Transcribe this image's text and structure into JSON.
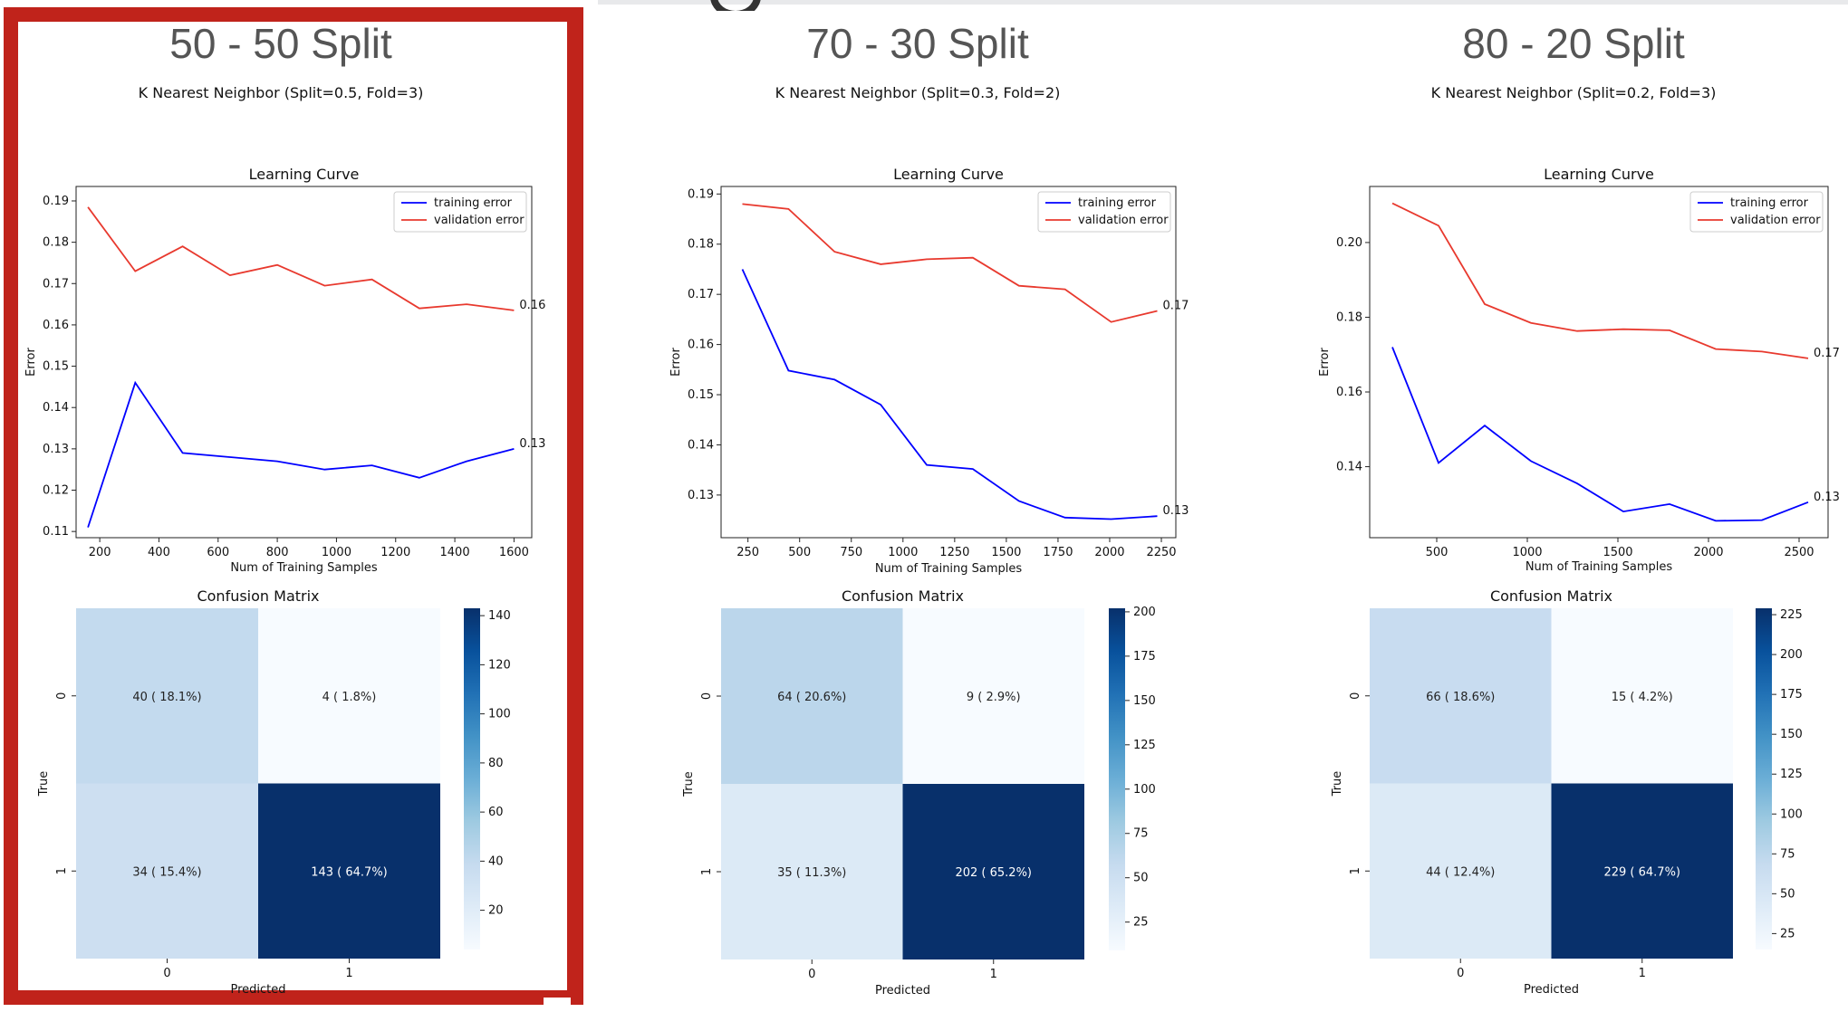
{
  "panels": [
    {
      "title": "50 - 50 Split",
      "subtitle": "K Nearest Neighbor (Split=0.5, Fold=3)",
      "learning_curve": {
        "title": "Learning Curve",
        "xlabel": "Num of Training Samples",
        "ylabel": "Error",
        "x_ticks": [
          200,
          400,
          600,
          800,
          1000,
          1200,
          1400,
          1600
        ],
        "y_ticks": [
          "0.11",
          "0.12",
          "0.13",
          "0.14",
          "0.15",
          "0.16",
          "0.17",
          "0.18",
          "0.19"
        ],
        "xlim": [
          120,
          1660
        ],
        "ylim": [
          0.1085,
          0.1935
        ],
        "series": [
          {
            "name": "training error",
            "color": "#0000ff",
            "x": [
              160,
              320,
              480,
              640,
              800,
              960,
              1120,
              1280,
              1440,
              1600
            ],
            "y": [
              0.111,
              0.146,
              0.129,
              0.128,
              0.127,
              0.125,
              0.126,
              0.123,
              0.127,
              0.13
            ],
            "end_label": "0.13"
          },
          {
            "name": "validation error",
            "color": "#e8392e",
            "x": [
              160,
              320,
              480,
              640,
              800,
              960,
              1120,
              1280,
              1440,
              1600
            ],
            "y": [
              0.1885,
              0.173,
              0.179,
              0.172,
              0.1745,
              0.1695,
              0.171,
              0.164,
              0.165,
              0.1635
            ],
            "end_label": "0.16"
          }
        ]
      },
      "confusion_matrix": {
        "title": "Confusion Matrix",
        "xlabel": "Predicted",
        "ylabel": "True",
        "row_labels": [
          "0",
          "1"
        ],
        "col_labels": [
          "0",
          "1"
        ],
        "values": [
          [
            40,
            4
          ],
          [
            34,
            143
          ]
        ],
        "cell_labels": [
          [
            "40 ( 18.1%)",
            "4 ( 1.8%)"
          ],
          [
            "34 ( 15.4%)",
            "143 ( 64.7%)"
          ]
        ],
        "colorbar_ticks": [
          20,
          40,
          60,
          80,
          100,
          120,
          140
        ]
      }
    },
    {
      "title": "70 - 30 Split",
      "subtitle": "K Nearest Neighbor (Split=0.3, Fold=2)",
      "learning_curve": {
        "title": "Learning Curve",
        "xlabel": "Num of Training Samples",
        "ylabel": "Error",
        "x_ticks": [
          250,
          500,
          750,
          1000,
          1250,
          1500,
          1750,
          2000,
          2250
        ],
        "y_ticks": [
          "0.13",
          "0.14",
          "0.15",
          "0.16",
          "0.17",
          "0.18",
          "0.19"
        ],
        "xlim": [
          120,
          2320
        ],
        "ylim": [
          0.1215,
          0.1915
        ],
        "series": [
          {
            "name": "training error",
            "color": "#0000ff",
            "x": [
              223,
              446,
              669,
              892,
              1115,
              1338,
              1561,
              1784,
              2007,
              2230
            ],
            "y": [
              0.175,
              0.1548,
              0.153,
              0.148,
              0.136,
              0.1352,
              0.1288,
              0.1255,
              0.1252,
              0.1258
            ],
            "end_label": "0.13"
          },
          {
            "name": "validation error",
            "color": "#e8392e",
            "x": [
              223,
              446,
              669,
              892,
              1115,
              1338,
              1561,
              1784,
              2007,
              2230
            ],
            "y": [
              0.188,
              0.187,
              0.1785,
              0.176,
              0.177,
              0.1773,
              0.1717,
              0.171,
              0.1645,
              0.1667
            ],
            "end_label": "0.17"
          }
        ]
      },
      "confusion_matrix": {
        "title": "Confusion Matrix",
        "xlabel": "Predicted",
        "ylabel": "True",
        "row_labels": [
          "0",
          "1"
        ],
        "col_labels": [
          "0",
          "1"
        ],
        "values": [
          [
            64,
            9
          ],
          [
            35,
            202
          ]
        ],
        "cell_labels": [
          [
            "64 ( 20.6%)",
            "9 ( 2.9%)"
          ],
          [
            "35 ( 11.3%)",
            "202 ( 65.2%)"
          ]
        ],
        "colorbar_ticks": [
          25,
          50,
          75,
          100,
          125,
          150,
          175,
          200
        ]
      }
    },
    {
      "title": "80 - 20 Split",
      "subtitle": "K Nearest Neighbor (Split=0.2, Fold=3)",
      "learning_curve": {
        "title": "Learning Curve",
        "xlabel": "Num of Training Samples",
        "ylabel": "Error",
        "x_ticks": [
          500,
          1000,
          1500,
          2000,
          2500
        ],
        "y_ticks": [
          "0.14",
          "0.16",
          "0.18",
          "0.20"
        ],
        "xlim": [
          130,
          2660
        ],
        "ylim": [
          0.121,
          0.215
        ],
        "series": [
          {
            "name": "training error",
            "color": "#0000ff",
            "x": [
              255,
              510,
              765,
              1020,
              1275,
              1530,
              1785,
              2040,
              2295,
              2550
            ],
            "y": [
              0.172,
              0.141,
              0.151,
              0.1415,
              0.1355,
              0.128,
              0.13,
              0.1255,
              0.1257,
              0.1305
            ],
            "end_label": "0.13"
          },
          {
            "name": "validation error",
            "color": "#e8392e",
            "x": [
              255,
              510,
              765,
              1020,
              1275,
              1530,
              1785,
              2040,
              2295,
              2550
            ],
            "y": [
              0.2105,
              0.2045,
              0.1835,
              0.1785,
              0.1763,
              0.1768,
              0.1765,
              0.1715,
              0.1708,
              0.169
            ],
            "end_label": "0.17"
          }
        ]
      },
      "confusion_matrix": {
        "title": "Confusion Matrix",
        "xlabel": "Predicted",
        "ylabel": "True",
        "row_labels": [
          "0",
          "1"
        ],
        "col_labels": [
          "0",
          "1"
        ],
        "values": [
          [
            66,
            15
          ],
          [
            44,
            229
          ]
        ],
        "cell_labels": [
          [
            "66 ( 18.6%)",
            "15 ( 4.2%)"
          ],
          [
            "44 ( 12.4%)",
            "229 ( 64.7%)"
          ]
        ],
        "colorbar_ticks": [
          25,
          50,
          75,
          100,
          125,
          150,
          175,
          200,
          225
        ]
      }
    }
  ],
  "colors": {
    "highlight": "#c0231b",
    "cmap_low": "#f7fbff",
    "cmap_high": "#08306b"
  }
}
